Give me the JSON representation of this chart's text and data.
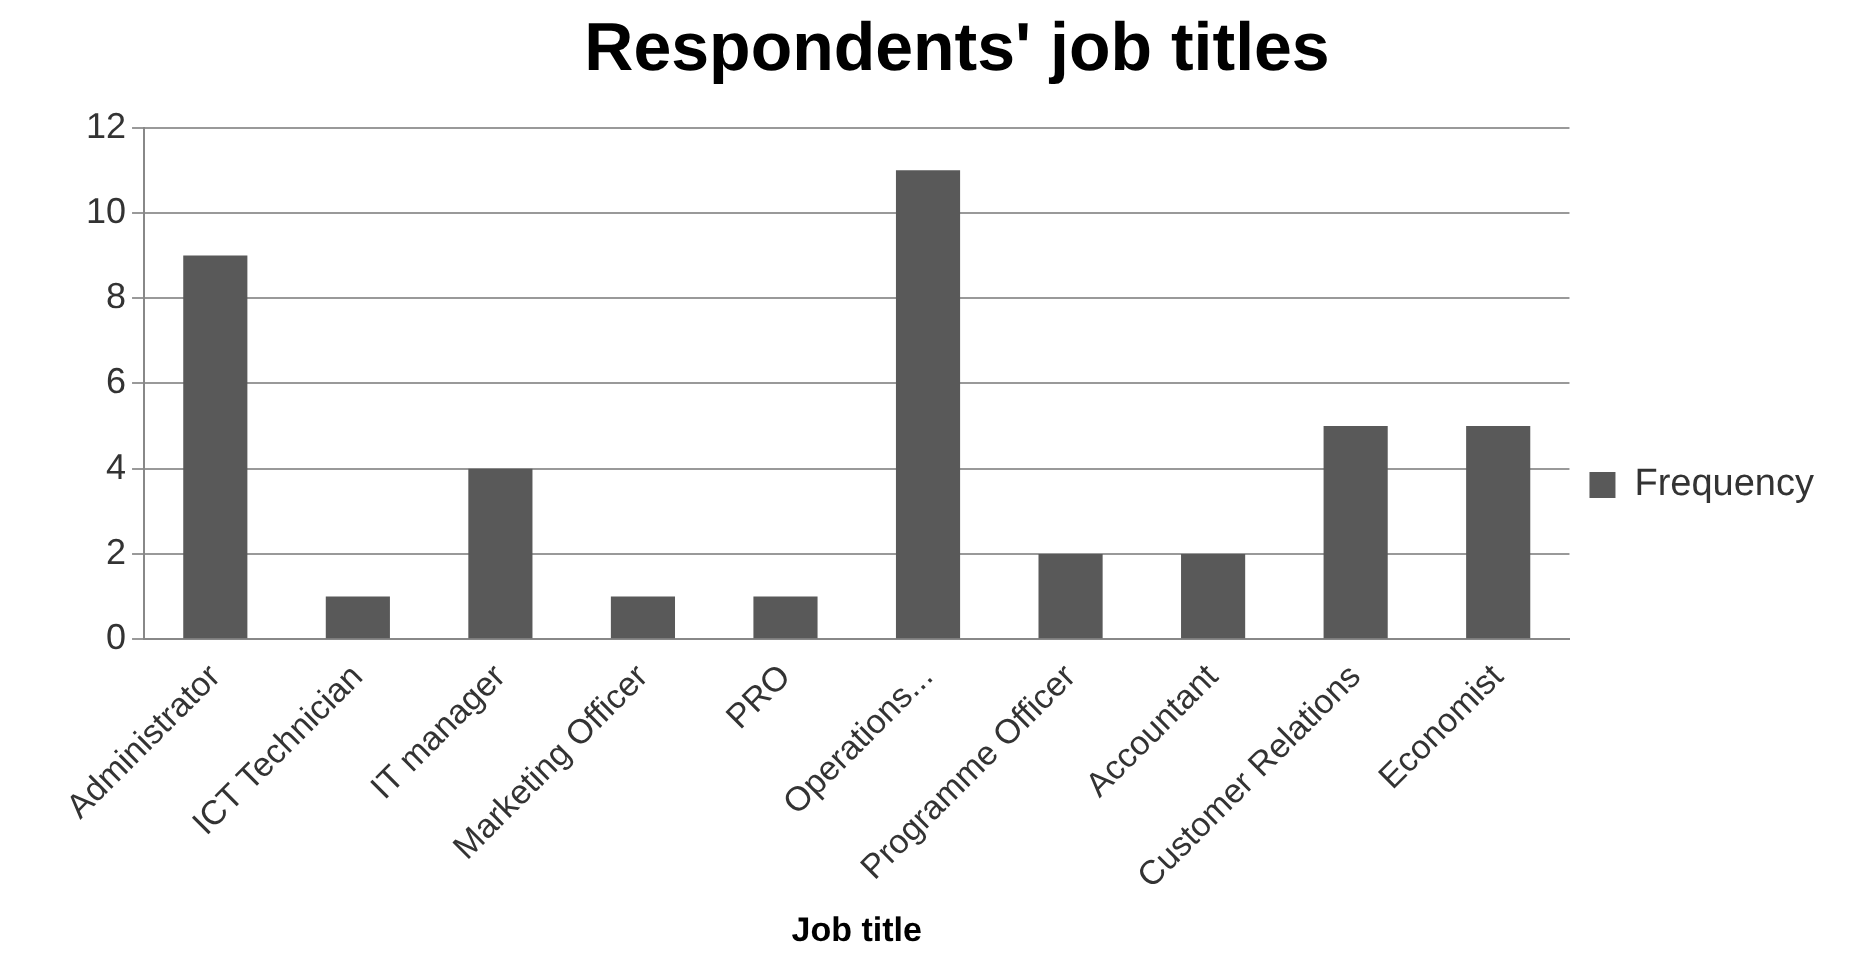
{
  "chart_data": {
    "type": "bar",
    "title": "Respondents' job titles",
    "xlabel": "Job title",
    "categories": [
      "Administrator",
      "ICT Technician",
      "IT manager",
      "Marketing Officer",
      "PRO",
      "Operations...",
      "Programme Officer",
      "Accountant",
      "Customer Relations",
      "Economist"
    ],
    "series": [
      {
        "name": "Frequency",
        "color": "#595959",
        "values": [
          9,
          1,
          4,
          1,
          1,
          11,
          2,
          2,
          5,
          5
        ]
      }
    ],
    "ylim": [
      0,
      12
    ],
    "yticks": [
      0,
      2,
      4,
      6,
      8,
      10,
      12
    ],
    "grid": "y",
    "legend": "right"
  }
}
